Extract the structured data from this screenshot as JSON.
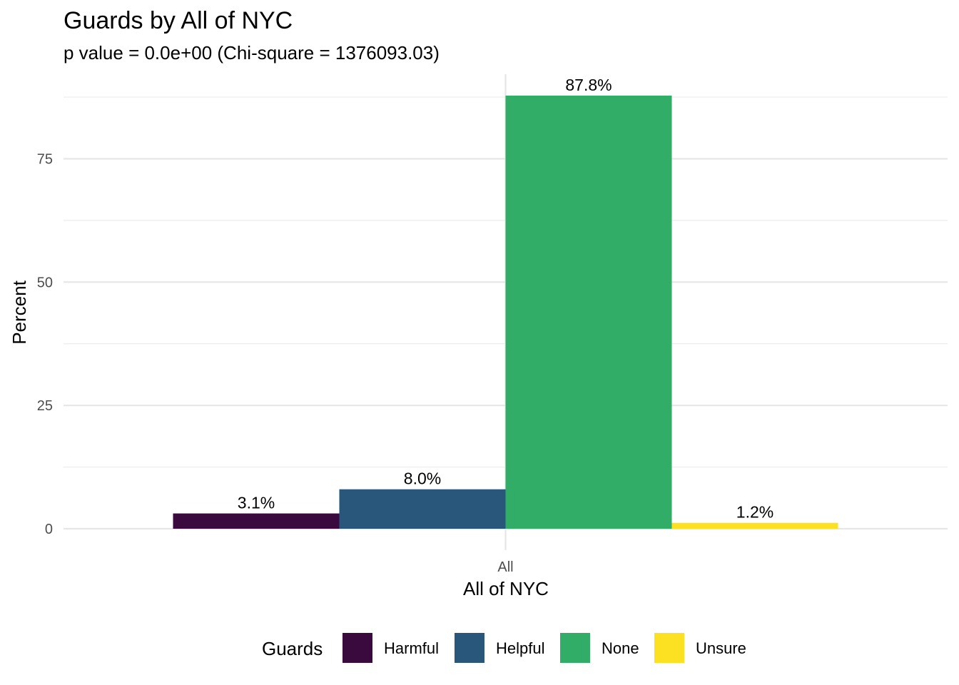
{
  "chart_data": {
    "type": "bar",
    "title": "Guards by All of NYC",
    "subtitle": "p value = 0.0e+00 (Chi-square = 1376093.03)",
    "xlabel": "All of NYC",
    "ylabel": "Percent",
    "categories": [
      "All"
    ],
    "series": [
      {
        "name": "Harmful",
        "color": "#3a0a3f",
        "values": [
          3.1
        ],
        "label": "3.1%"
      },
      {
        "name": "Helpful",
        "color": "#29567b",
        "values": [
          8.0
        ],
        "label": "8.0%"
      },
      {
        "name": "None",
        "color": "#31ad67",
        "values": [
          87.8
        ],
        "label": "87.8%"
      },
      {
        "name": "Unsure",
        "color": "#fbe121",
        "values": [
          1.2
        ],
        "label": "1.2%"
      }
    ],
    "y_ticks": [
      0,
      25,
      50,
      75
    ],
    "y_tick_labels": [
      "0",
      "25",
      "50",
      "75"
    ],
    "y_minor_ticks": [
      12.5,
      37.5,
      62.5,
      87.5
    ],
    "ylim": [
      0,
      92
    ],
    "grid": true,
    "legend": {
      "title": "Guards",
      "placement": "bottom"
    }
  }
}
